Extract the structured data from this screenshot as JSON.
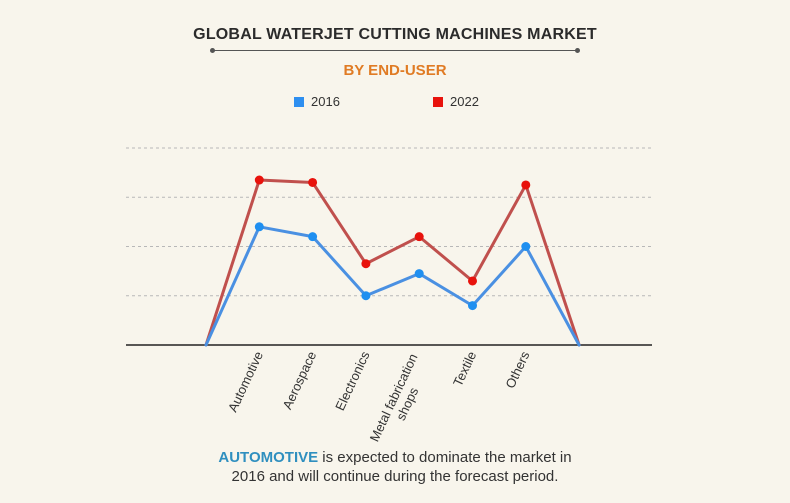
{
  "header": {
    "title": "GLOBAL WATERJET CUTTING MACHINES MARKET",
    "subtitle": "BY END-USER"
  },
  "colors": {
    "series_2016": "#4a90e2",
    "series_2016_marker": "#1f8ff0",
    "series_2022": "#c0504d",
    "series_2022_marker": "#e8120c",
    "gridline": "#b8b8b8",
    "axis": "#222222",
    "highlight": "#2f8fbf",
    "subtitle": "#e07b24"
  },
  "footer": {
    "highlight": "AUTOMOTIVE",
    "line1_rest": " is expected to dominate the market in",
    "line2": "2016 and will continue during the forecast period."
  },
  "chart_data": {
    "type": "line",
    "title": "GLOBAL WATERJET CUTTING MACHINES MARKET",
    "subtitle": "BY END-USER",
    "categories": [
      "",
      "Automotive",
      "Aerospace",
      "Electronics",
      "Metal fabrication shops",
      "Textile",
      "Others",
      ""
    ],
    "category_labels": [
      "Automotive",
      "Aerospace",
      "Electronics",
      [
        "Metal fabrication",
        "shops"
      ],
      "Textile",
      "Others"
    ],
    "series": [
      {
        "name": "2016",
        "values": [
          0,
          2.4,
          2.2,
          1.0,
          1.45,
          0.8,
          2.0,
          0
        ]
      },
      {
        "name": "2022",
        "values": [
          0,
          3.35,
          3.3,
          1.65,
          2.2,
          1.3,
          3.25,
          0
        ]
      }
    ],
    "ylim": [
      0,
      4
    ],
    "y_tick_labels_shown": false,
    "grid": "horizontal dashed",
    "legend": "top"
  }
}
